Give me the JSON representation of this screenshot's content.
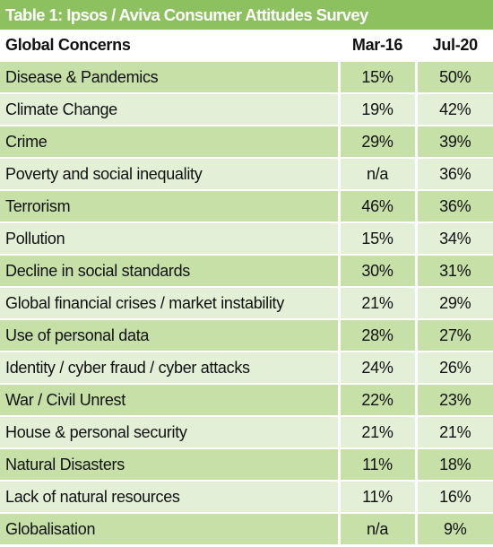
{
  "title": "Table 1: Ipsos / Aviva Consumer Attitudes Survey",
  "colors": {
    "title_bar": "#8dc05e",
    "row_dark": "#c6e0a8",
    "row_light": "#e3efd7"
  },
  "chart_data": {
    "type": "table",
    "title": "Table 1: Ipsos / Aviva Consumer Attitudes Survey",
    "columns": [
      "Global Concerns",
      "Mar-16",
      "Jul-20"
    ],
    "rows": [
      [
        "Disease & Pandemics",
        "15%",
        "50%"
      ],
      [
        "Climate Change",
        "19%",
        "42%"
      ],
      [
        "Crime",
        "29%",
        "39%"
      ],
      [
        "Poverty and social inequality",
        "n/a",
        "36%"
      ],
      [
        "Terrorism",
        "46%",
        "36%"
      ],
      [
        "Pollution",
        "15%",
        "34%"
      ],
      [
        "Decline in social standards",
        "30%",
        "31%"
      ],
      [
        "Global financial crises / market instability",
        "21%",
        "29%"
      ],
      [
        "Use of personal data",
        "28%",
        "27%"
      ],
      [
        "Identity / cyber fraud / cyber attacks",
        "24%",
        "26%"
      ],
      [
        "War / Civil Unrest",
        "22%",
        "23%"
      ],
      [
        "House & personal security",
        "21%",
        "21%"
      ],
      [
        "Natural Disasters",
        "11%",
        "18%"
      ],
      [
        "Lack of natural resources",
        "11%",
        "16%"
      ],
      [
        "Globalisation",
        "n/a",
        "9%"
      ]
    ]
  }
}
